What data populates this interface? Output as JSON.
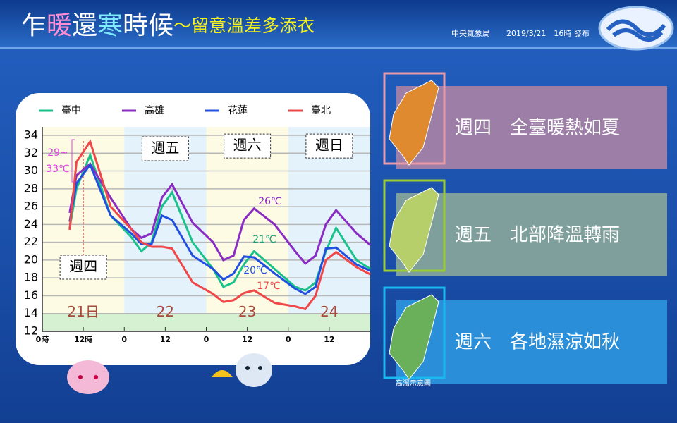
{
  "header": {
    "title_parts": [
      "乍",
      "暖",
      "還",
      "寒",
      "時候",
      "～留意溫差多添衣"
    ],
    "agency": "中央氣象局",
    "issued": "2019/3/21　16時 發布"
  },
  "panels": [
    {
      "text": "週四　全臺暖熱如夏"
    },
    {
      "text": "週五　北部降溫轉雨"
    },
    {
      "text": "週六　各地濕涼如秋"
    }
  ],
  "map_caption": "高溫示意圖",
  "chart_data": {
    "type": "line",
    "x": [
      8,
      10,
      14,
      20,
      26,
      29,
      32,
      35,
      38,
      44,
      50,
      53,
      56,
      59,
      62,
      68,
      74,
      77,
      80,
      83,
      86,
      92,
      96
    ],
    "series": [
      {
        "name": "臺中",
        "color": "#19c28a",
        "values": [
          23.6,
          28,
          31.8,
          25,
          22.6,
          21,
          22,
          26,
          27.6,
          22,
          19,
          17,
          17.5,
          19.5,
          21,
          19,
          17,
          16.6,
          17.5,
          21,
          23.6,
          20,
          19
        ]
      },
      {
        "name": "高雄",
        "color": "#8a2bc4",
        "values": [
          25.3,
          29.5,
          30.8,
          27,
          23.5,
          22.5,
          23,
          27,
          28.5,
          24.2,
          22,
          20,
          20.5,
          24.5,
          25.8,
          24,
          21,
          19.6,
          20.5,
          24,
          25.6,
          23,
          21.7
        ]
      },
      {
        "name": "花蓮",
        "color": "#2150e0",
        "values": [
          24.3,
          28.6,
          30.7,
          25,
          23,
          21.8,
          21.8,
          25,
          24.5,
          20.5,
          19,
          17.8,
          18.5,
          20.4,
          20.3,
          18.5,
          16.8,
          16.2,
          17,
          21.3,
          21.4,
          19.5,
          18.8
        ]
      },
      {
        "name": "臺北",
        "color": "#f04848",
        "values": [
          23.4,
          31,
          33.3,
          26,
          23.5,
          22,
          21.5,
          21.5,
          21.3,
          17.5,
          16.2,
          15.3,
          15.5,
          16.3,
          16.6,
          15.2,
          14.8,
          14.5,
          16,
          20,
          20.9,
          19.2,
          18.4
        ]
      }
    ],
    "xlim": [
      0,
      96
    ],
    "xticks": [
      {
        "value": 0,
        "label": "0時"
      },
      {
        "value": 12,
        "label": "12時"
      },
      {
        "value": 24,
        "label": "0"
      },
      {
        "value": 36,
        "label": "12"
      },
      {
        "value": 48,
        "label": "0"
      },
      {
        "value": 60,
        "label": "12"
      },
      {
        "value": 72,
        "label": "0"
      },
      {
        "value": 84,
        "label": "12"
      }
    ],
    "ylim": [
      12,
      34
    ],
    "yticks": [
      12,
      14,
      16,
      18,
      20,
      22,
      24,
      26,
      28,
      30,
      32,
      34
    ],
    "grid": true,
    "day_names": [
      "週四",
      "週五",
      "週六",
      "週日"
    ],
    "day_numbers": [
      "21日",
      "22",
      "23",
      "24"
    ],
    "annotations": [
      "29~",
      "33℃",
      "26℃",
      "21℃",
      "20℃",
      "17℃"
    ]
  }
}
